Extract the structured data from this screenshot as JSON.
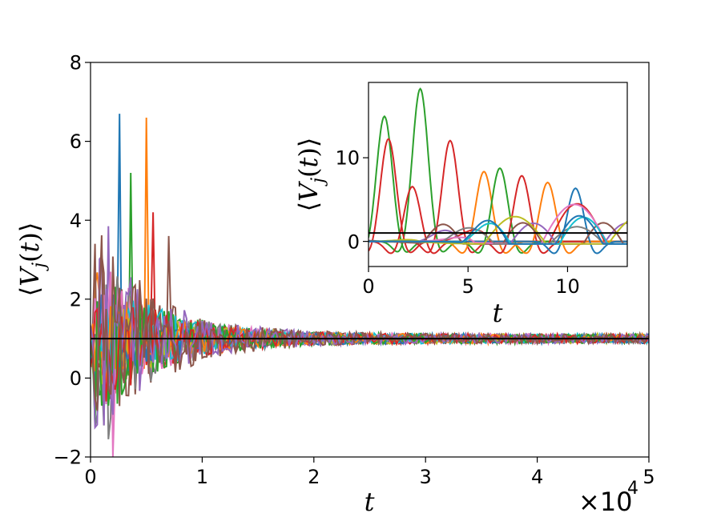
{
  "chart_data": [
    {
      "panel": "main",
      "type": "line",
      "title": "",
      "xlabel": "t",
      "ylabel": "⟨V_j(t)⟩",
      "x_multiplier_label": "×10^4",
      "xlim": [
        0,
        5
      ],
      "ylim": [
        -2,
        8
      ],
      "x_ticks": [
        0,
        1,
        2,
        3,
        4,
        5
      ],
      "y_ticks": [
        -2,
        0,
        2,
        4,
        6,
        8
      ],
      "x_tick_labels": [
        "0",
        "1",
        "2",
        "3",
        "4",
        "5"
      ],
      "y_tick_labels": [
        "−2",
        "0",
        "2",
        "4",
        "6",
        "8"
      ],
      "reference_line": {
        "y": 1,
        "color": "#000000"
      },
      "grid": false,
      "legend": "none",
      "series_count": 16,
      "series_note": "many oscillating trajectories converging to the reference value",
      "highlighted_peaks": [
        {
          "x": 0.25,
          "y": 6.7
        },
        {
          "x": 0.5,
          "y": 6.6
        },
        {
          "x": 0.35,
          "y": 5.2
        },
        {
          "x": 0.55,
          "y": 4.2
        },
        {
          "x": 0.15,
          "y": 3.85
        },
        {
          "x": 0.7,
          "y": 3.6
        },
        {
          "x": 0.2,
          "y": -2.0
        },
        {
          "x": 0.15,
          "y": -1.55
        }
      ]
    },
    {
      "panel": "inset",
      "type": "line",
      "title": "",
      "xlabel": "t",
      "ylabel": "⟨V_j(t)⟩",
      "xlim": [
        0,
        13
      ],
      "ylim": [
        -3,
        19
      ],
      "x_ticks": [
        0,
        5,
        10
      ],
      "y_ticks": [
        0,
        10
      ],
      "x_tick_labels": [
        "0",
        "5",
        "10"
      ],
      "y_tick_labels": [
        "0",
        "10"
      ],
      "reference_line": {
        "y": 1,
        "color": "#000000"
      },
      "grid": false,
      "legend": "none",
      "series_note": "early-time oscillations for individual sites",
      "peaks": [
        {
          "x": 0.8,
          "y": 15.0,
          "color": "#2ca02c"
        },
        {
          "x": 2.6,
          "y": 18.3,
          "color": "#2ca02c"
        },
        {
          "x": 1.0,
          "y": 12.3,
          "color": "#d62728"
        },
        {
          "x": 4.1,
          "y": 12.1,
          "color": "#d62728"
        },
        {
          "x": 2.2,
          "y": 6.6,
          "color": "#d62728"
        },
        {
          "x": 5.8,
          "y": 8.4,
          "color": "#ff7f0e"
        },
        {
          "x": 6.6,
          "y": 8.8,
          "color": "#2ca02c"
        },
        {
          "x": 7.7,
          "y": 7.9,
          "color": "#d62728"
        },
        {
          "x": 9.0,
          "y": 7.1,
          "color": "#ff7f0e"
        },
        {
          "x": 10.4,
          "y": 6.4,
          "color": "#1f77b4"
        }
      ]
    }
  ],
  "colors": {
    "palette": [
      "#1f77b4",
      "#ff7f0e",
      "#2ca02c",
      "#d62728",
      "#9467bd",
      "#8c564b",
      "#e377c2",
      "#7f7f7f",
      "#bcbd22",
      "#17becf"
    ],
    "reference": "#000000"
  }
}
